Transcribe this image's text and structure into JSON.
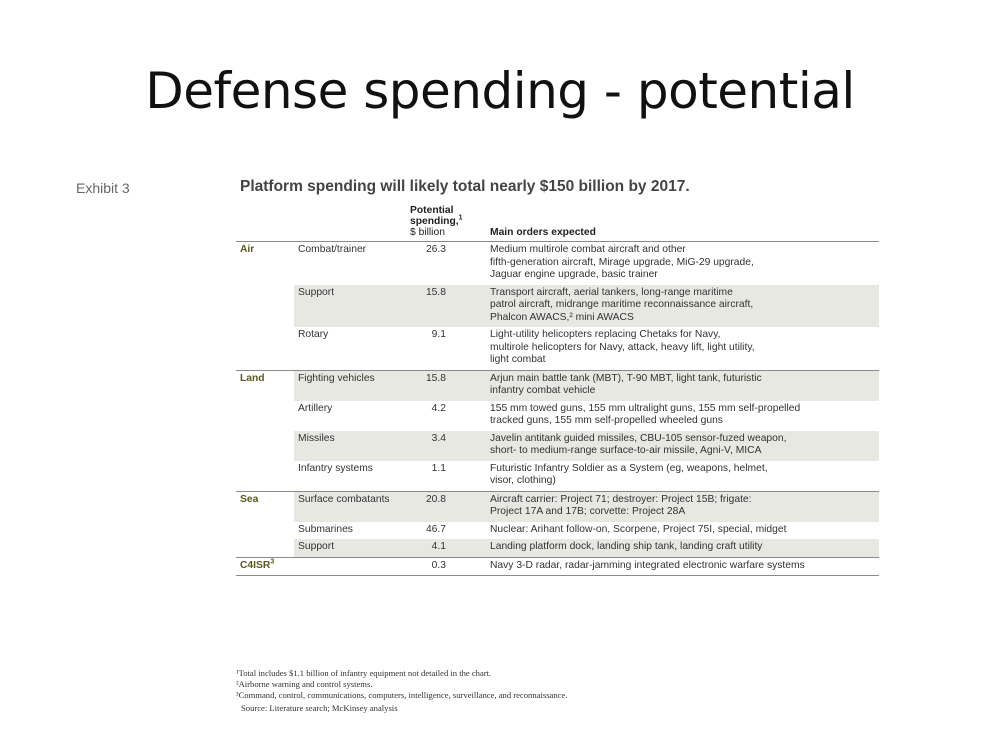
{
  "slide": {
    "title": "Defense spending - potential"
  },
  "exhibit": {
    "label": "Exhibit 3",
    "title": "Platform spending will likely total nearly $150 billion by 2017.",
    "headers": {
      "spend_line1": "Potential",
      "spend_line2": "spending,",
      "spend_sup": "1",
      "spend_unit": "$ billion",
      "orders": "Main orders expected"
    },
    "rows": [
      {
        "group": "Air",
        "sub": "Combat/trainer",
        "value": "26.3",
        "orders": [
          "Medium multirole combat aircraft and other",
          "fifth-generation aircraft, Mirage upgrade, MiG-29 upgrade,",
          "Jaguar engine upgrade, basic trainer"
        ]
      },
      {
        "group": "",
        "sub": "Support",
        "value": "15.8",
        "orders": [
          "Transport aircraft, aerial tankers, long-range maritime",
          "patrol aircraft, midrange maritime reconnaissance aircraft,",
          "Phalcon AWACS,² mini AWACS"
        ]
      },
      {
        "group": "",
        "sub": "Rotary",
        "value": "9.1",
        "orders": [
          "Light-utility helicopters replacing Chetaks for Navy,",
          "multirole helicopters for Navy, attack, heavy lift, light utility,",
          "light combat"
        ]
      },
      {
        "group": "Land",
        "sub": "Fighting vehicles",
        "value": "15.8",
        "orders": [
          "Arjun main battle tank (MBT), T-90 MBT, light tank, futuristic",
          "infantry combat vehicle"
        ]
      },
      {
        "group": "",
        "sub": "Artillery",
        "value": "4.2",
        "orders": [
          "155 mm towed guns, 155 mm ultralight guns, 155 mm self-propelled",
          "tracked guns, 155 mm self-propelled wheeled guns"
        ]
      },
      {
        "group": "",
        "sub": "Missiles",
        "value": "3.4",
        "orders": [
          "Javelin antitank guided missiles, CBU-105 sensor-fuzed weapon,",
          "short- to medium-range surface-to-air missile, Agni-V, MICA"
        ]
      },
      {
        "group": "",
        "sub": "Infantry systems",
        "value": "1.1",
        "orders": [
          "Futuristic Infantry Soldier as a System (eg, weapons, helmet,",
          "visor, clothing)"
        ]
      },
      {
        "group": "Sea",
        "sub": "Surface combatants",
        "value": "20.8",
        "orders": [
          "Aircraft carrier: Project 71; destroyer: Project 15B; frigate:",
          "Project 17A and 17B; corvette: Project 28A"
        ]
      },
      {
        "group": "",
        "sub": "Submarines",
        "value": "46.7",
        "orders": [
          "Nuclear: Arihant follow-on, Scorpene, Project 75I, special, midget"
        ]
      },
      {
        "group": "",
        "sub": "Support",
        "value": "4.1",
        "orders": [
          "Landing platform dock, landing ship tank, landing craft utility"
        ]
      },
      {
        "group": "C4ISR",
        "group_sup": "3",
        "sub": "",
        "value": "0.3",
        "orders": [
          "Navy 3-D radar, radar-jamming integrated electronic warfare systems"
        ]
      }
    ],
    "footnotes": [
      "¹Total includes $1.1 billion of infantry equipment not detailed in the chart.",
      "²Airborne warning and control systems.",
      "³Command, control, communications, computers, intelligence, surveillance, and reconnaissance."
    ],
    "source": "Source: Literature search; McKinsey analysis"
  }
}
